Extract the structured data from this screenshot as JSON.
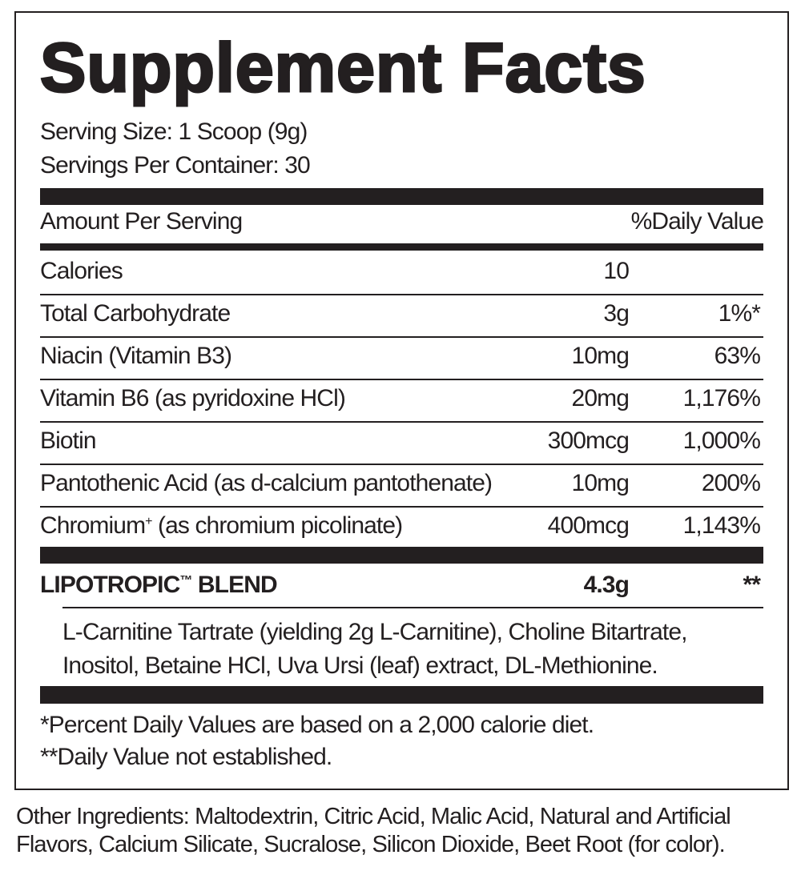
{
  "title": "Supplement Facts",
  "serving_size": "Serving Size: 1 Scoop (9g)",
  "servings_per_container": "Servings Per Container: 30",
  "header": {
    "amount": "Amount Per Serving",
    "dv": "%Daily Value"
  },
  "rows": [
    {
      "name": "Calories",
      "amount": "10",
      "dv": ""
    },
    {
      "name": "Total Carbohydrate",
      "amount": "3g",
      "dv": "1%*"
    },
    {
      "name": "Niacin (Vitamin B3)",
      "amount": "10mg",
      "dv": "63%"
    },
    {
      "name": "Vitamin B6 (as pyridoxine HCl)",
      "amount": "20mg",
      "dv": "1,176%"
    },
    {
      "name": "Biotin",
      "amount": "300mcg",
      "dv": "1,000%"
    },
    {
      "name": "Pantothenic Acid (as d-calcium pantothenate)",
      "amount": "10mg",
      "dv": "200%"
    },
    {
      "name_main": "Chromium",
      "name_sup": "+",
      "name_rest": " (as chromium picolinate)",
      "amount": "400mcg",
      "dv": "1,143%"
    }
  ],
  "blend": {
    "name": "LIPOTROPIC",
    "tm": "™",
    "name_rest": " BLEND",
    "amount": "4.3g",
    "dv": "**",
    "ingredients_line1": "L-Carnitine Tartrate (yielding 2g L-Carnitine), Choline Bitartrate,",
    "ingredients_line2": "Inositol, Betaine HCl, Uva Ursi (leaf) extract, DL-Methionine."
  },
  "footnotes": [
    "*Percent Daily Values are based on a 2,000 calorie diet.",
    "**Daily Value not established."
  ],
  "other_ingredients": [
    "Other Ingredients: Maltodextrin, Citric Acid, Malic Acid, Natural and Artificial",
    "Flavors, Calcium Silicate, Sucralose, Silicon Dioxide, Beet Root (for color)."
  ]
}
